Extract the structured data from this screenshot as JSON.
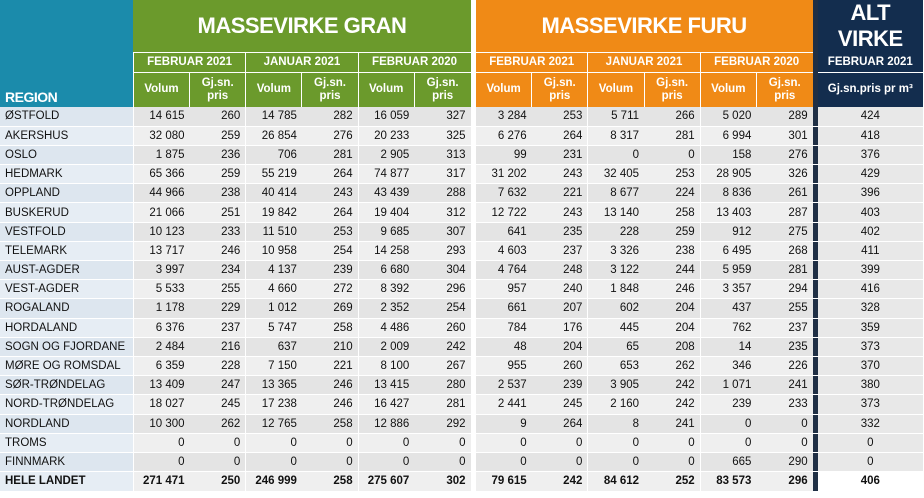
{
  "headers": {
    "region": "REGION",
    "gran": "MASSEVIRKE GRAN",
    "furu": "MASSEVIRKE FURU",
    "alt": "ALT VIRKE",
    "periods": [
      "FEBRUAR 2021",
      "JANUAR 2021",
      "FEBRUAR 2020"
    ],
    "alt_period": "FEBRUAR 2021",
    "volum": "Volum",
    "pris_line1": "Gj.sn.",
    "pris_line2": "pris",
    "alt_col": "Gj.sn.pris pr m³"
  },
  "colors": {
    "region_header": "#1b8bab",
    "gran_header": "#6b9a2c",
    "furu_header": "#f08a16",
    "alt_header": "#132d4e"
  },
  "rows": [
    {
      "name": "ØSTFOLD",
      "v": [
        "14 615",
        "260",
        "14 785",
        "282",
        "16 059",
        "327",
        "3 284",
        "253",
        "5 711",
        "266",
        "5 020",
        "289"
      ],
      "alt": "424"
    },
    {
      "name": "AKERSHUS",
      "v": [
        "32 080",
        "259",
        "26 854",
        "276",
        "20 233",
        "325",
        "6 276",
        "264",
        "8 317",
        "281",
        "6 994",
        "301"
      ],
      "alt": "418"
    },
    {
      "name": "OSLO",
      "v": [
        "1 875",
        "236",
        "706",
        "281",
        "2 905",
        "313",
        "99",
        "231",
        "0",
        "0",
        "158",
        "276"
      ],
      "alt": "376"
    },
    {
      "name": "HEDMARK",
      "v": [
        "65 366",
        "259",
        "55 219",
        "264",
        "74 877",
        "317",
        "31 202",
        "243",
        "32 405",
        "253",
        "28 905",
        "326"
      ],
      "alt": "429"
    },
    {
      "name": "OPPLAND",
      "v": [
        "44 966",
        "238",
        "40 414",
        "243",
        "43 439",
        "288",
        "7 632",
        "221",
        "8 677",
        "224",
        "8 836",
        "261"
      ],
      "alt": "396"
    },
    {
      "name": "BUSKERUD",
      "v": [
        "21 066",
        "251",
        "19 842",
        "264",
        "19 404",
        "312",
        "12 722",
        "243",
        "13 140",
        "258",
        "13 403",
        "287"
      ],
      "alt": "403"
    },
    {
      "name": "VESTFOLD",
      "v": [
        "10 123",
        "233",
        "11 510",
        "253",
        "9 685",
        "307",
        "641",
        "235",
        "228",
        "259",
        "912",
        "275"
      ],
      "alt": "402"
    },
    {
      "name": "TELEMARK",
      "v": [
        "13 717",
        "246",
        "10 958",
        "254",
        "14 258",
        "293",
        "4 603",
        "237",
        "3 326",
        "238",
        "6 495",
        "268"
      ],
      "alt": "411"
    },
    {
      "name": "AUST-AGDER",
      "v": [
        "3 997",
        "234",
        "4 137",
        "239",
        "6 680",
        "304",
        "4 764",
        "248",
        "3 122",
        "244",
        "5 959",
        "281"
      ],
      "alt": "399"
    },
    {
      "name": "VEST-AGDER",
      "v": [
        "5 533",
        "255",
        "4 660",
        "272",
        "8 392",
        "296",
        "957",
        "240",
        "1 848",
        "246",
        "3 357",
        "294"
      ],
      "alt": "416"
    },
    {
      "name": "ROGALAND",
      "v": [
        "1 178",
        "229",
        "1 012",
        "269",
        "2 352",
        "254",
        "661",
        "207",
        "602",
        "204",
        "437",
        "255"
      ],
      "alt": "328"
    },
    {
      "name": "HORDALAND",
      "v": [
        "6 376",
        "237",
        "5 747",
        "258",
        "4 486",
        "260",
        "784",
        "176",
        "445",
        "204",
        "762",
        "237"
      ],
      "alt": "359"
    },
    {
      "name": "SOGN OG FJORDANE",
      "v": [
        "2 484",
        "216",
        "637",
        "210",
        "2 009",
        "242",
        "48",
        "204",
        "65",
        "208",
        "14",
        "235"
      ],
      "alt": "373"
    },
    {
      "name": "MØRE OG ROMSDAL",
      "v": [
        "6 359",
        "228",
        "7 150",
        "221",
        "8 100",
        "267",
        "955",
        "260",
        "653",
        "262",
        "346",
        "226"
      ],
      "alt": "370"
    },
    {
      "name": "SØR-TRØNDELAG",
      "v": [
        "13 409",
        "247",
        "13 365",
        "246",
        "13 415",
        "280",
        "2 537",
        "239",
        "3 905",
        "242",
        "1 071",
        "241"
      ],
      "alt": "380"
    },
    {
      "name": "NORD-TRØNDELAG",
      "v": [
        "18 027",
        "245",
        "17 238",
        "246",
        "16 427",
        "281",
        "2 441",
        "245",
        "2 160",
        "242",
        "239",
        "233"
      ],
      "alt": "373"
    },
    {
      "name": "NORDLAND",
      "v": [
        "10 300",
        "262",
        "12 765",
        "258",
        "12 886",
        "292",
        "9",
        "264",
        "8",
        "241",
        "0",
        "0"
      ],
      "alt": "332"
    },
    {
      "name": "TROMS",
      "v": [
        "0",
        "0",
        "0",
        "0",
        "0",
        "0",
        "0",
        "0",
        "0",
        "0",
        "0",
        "0"
      ],
      "alt": "0"
    },
    {
      "name": "FINNMARK",
      "v": [
        "0",
        "0",
        "0",
        "0",
        "0",
        "0",
        "0",
        "0",
        "0",
        "0",
        "665",
        "290"
      ],
      "alt": "0"
    }
  ],
  "total": {
    "name": "HELE LANDET",
    "v": [
      "271 471",
      "250",
      "246 999",
      "258",
      "275 607",
      "302",
      "79 615",
      "242",
      "84 612",
      "252",
      "83 573",
      "296"
    ],
    "alt": "406"
  }
}
